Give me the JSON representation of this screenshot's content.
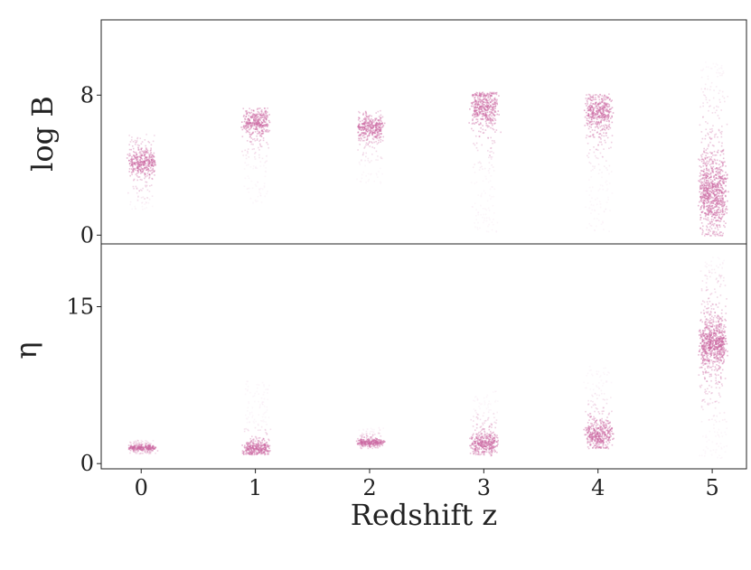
{
  "chart_data": {
    "type": "scatter",
    "x": {
      "label": "Redshift z",
      "ticks": [
        "0",
        "1",
        "2",
        "3",
        "4",
        "5"
      ],
      "range": [
        -0.35,
        5.3
      ]
    },
    "point_color": "#cc6aa3",
    "panels": [
      {
        "id": "logB",
        "ylabel": "log B",
        "yticks": [
          0,
          8
        ],
        "ylim": [
          -0.5,
          12.3
        ],
        "groups": [
          {
            "z": 0,
            "center": 4.2,
            "spread": 0.9,
            "min": 1.5,
            "max": 5.8,
            "n": 420
          },
          {
            "z": 1,
            "center": 6.5,
            "spread": 0.9,
            "min": 1.8,
            "max": 7.3,
            "n": 420
          },
          {
            "z": 2,
            "center": 6.2,
            "spread": 0.8,
            "min": 3.0,
            "max": 7.2,
            "n": 400
          },
          {
            "z": 3,
            "center": 7.3,
            "spread": 1.4,
            "min": 0.2,
            "max": 8.2,
            "n": 520
          },
          {
            "z": 4,
            "center": 7.0,
            "spread": 1.3,
            "min": 0.2,
            "max": 8.1,
            "n": 500
          },
          {
            "z": 5,
            "center": 2.5,
            "spread": 2.6,
            "min": 0.0,
            "max": 10.0,
            "n": 900
          }
        ]
      },
      {
        "id": "eta",
        "ylabel": "η",
        "yticks": [
          0,
          15
        ],
        "ylim": [
          -0.5,
          21.0
        ],
        "groups": [
          {
            "z": 0,
            "center": 1.6,
            "spread": 0.3,
            "min": 1.0,
            "max": 2.3,
            "n": 300
          },
          {
            "z": 1,
            "center": 1.5,
            "spread": 0.9,
            "min": 0.9,
            "max": 8.0,
            "n": 400
          },
          {
            "z": 2,
            "center": 2.1,
            "spread": 0.4,
            "min": 1.5,
            "max": 3.5,
            "n": 320
          },
          {
            "z": 3,
            "center": 2.0,
            "spread": 1.2,
            "min": 0.8,
            "max": 7.0,
            "n": 420
          },
          {
            "z": 4,
            "center": 2.8,
            "spread": 1.6,
            "min": 1.5,
            "max": 9.5,
            "n": 460
          },
          {
            "z": 5,
            "center": 11.5,
            "spread": 3.0,
            "min": 0.5,
            "max": 19.8,
            "n": 900
          }
        ]
      }
    ]
  }
}
